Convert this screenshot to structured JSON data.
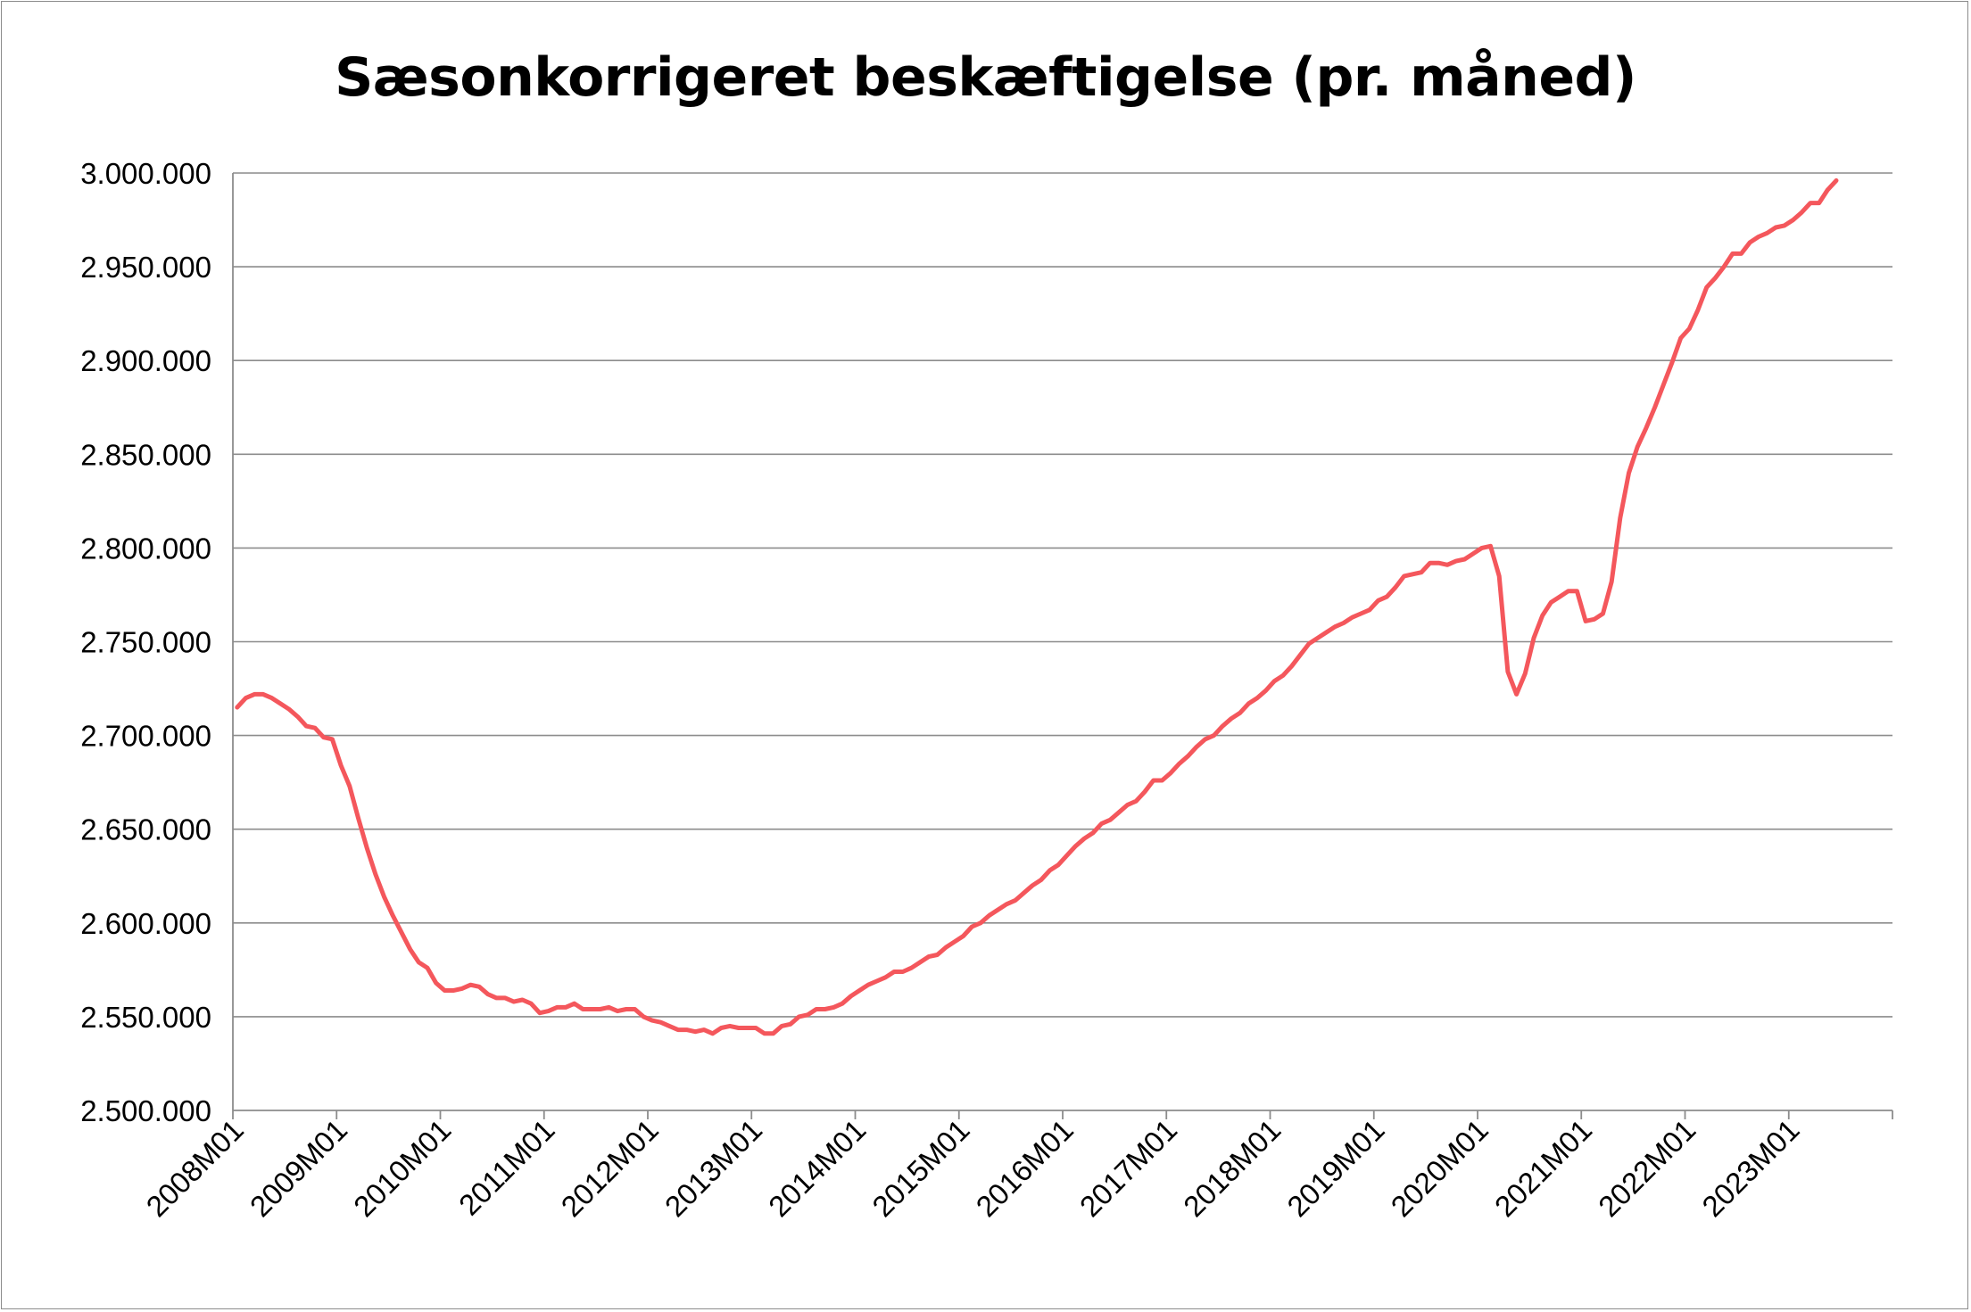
{
  "chart_data": {
    "type": "line",
    "title": "Sæsonkorrigeret beskæftigelse (pr. måned)",
    "xlabel": "",
    "ylabel": "",
    "ylim": [
      2500000,
      3000000
    ],
    "y_ticks": [
      2500000,
      2550000,
      2600000,
      2650000,
      2700000,
      2750000,
      2800000,
      2850000,
      2900000,
      2950000,
      3000000
    ],
    "y_tick_labels": [
      "2.500.000",
      "2.550.000",
      "2.600.000",
      "2.650.000",
      "2.700.000",
      "2.750.000",
      "2.800.000",
      "2.850.000",
      "2.900.000",
      "2.950.000",
      "3.000.000"
    ],
    "x_tick_labels": [
      "2008M01",
      "2009M01",
      "2010M01",
      "2011M01",
      "2012M01",
      "2013M01",
      "2014M01",
      "2015M01",
      "2016M01",
      "2017M01",
      "2018M01",
      "2019M01",
      "2020M01",
      "2021M01",
      "2022M01",
      "2023M01"
    ],
    "x_start": "2008M01",
    "x_end": "2023M07",
    "grid": true,
    "legend": "none",
    "line_color": "#f4575c",
    "series": [
      {
        "name": "",
        "values": [
          2715000,
          2720000,
          2722000,
          2722000,
          2720000,
          2717000,
          2714000,
          2710000,
          2705000,
          2704000,
          2699000,
          2698000,
          2684000,
          2673000,
          2656000,
          2640000,
          2626000,
          2614000,
          2604000,
          2595000,
          2586000,
          2579000,
          2576000,
          2568000,
          2564000,
          2564000,
          2565000,
          2567000,
          2566000,
          2562000,
          2560000,
          2560000,
          2558000,
          2559000,
          2557000,
          2552000,
          2553000,
          2555000,
          2555000,
          2557000,
          2554000,
          2554000,
          2554000,
          2555000,
          2553000,
          2554000,
          2554000,
          2550000,
          2548000,
          2547000,
          2545000,
          2543000,
          2543000,
          2542000,
          2543000,
          2541000,
          2544000,
          2545000,
          2544000,
          2544000,
          2544000,
          2541000,
          2541000,
          2545000,
          2546000,
          2550000,
          2551000,
          2554000,
          2554000,
          2555000,
          2557000,
          2561000,
          2564000,
          2567000,
          2569000,
          2571000,
          2574000,
          2574000,
          2576000,
          2579000,
          2582000,
          2583000,
          2587000,
          2590000,
          2593000,
          2598000,
          2600000,
          2604000,
          2607000,
          2610000,
          2612000,
          2616000,
          2620000,
          2623000,
          2628000,
          2631000,
          2636000,
          2641000,
          2645000,
          2648000,
          2653000,
          2655000,
          2659000,
          2663000,
          2665000,
          2670000,
          2676000,
          2676000,
          2680000,
          2685000,
          2689000,
          2694000,
          2698000,
          2700000,
          2705000,
          2709000,
          2712000,
          2717000,
          2720000,
          2724000,
          2729000,
          2732000,
          2737000,
          2743000,
          2749000,
          2752000,
          2755000,
          2758000,
          2760000,
          2763000,
          2765000,
          2767000,
          2772000,
          2774000,
          2779000,
          2785000,
          2786000,
          2787000,
          2792000,
          2792000,
          2791000,
          2793000,
          2794000,
          2797000,
          2800000,
          2801000,
          2785000,
          2734000,
          2722000,
          2733000,
          2752000,
          2764000,
          2771000,
          2774000,
          2777000,
          2777000,
          2761000,
          2762000,
          2765000,
          2782000,
          2816000,
          2840000,
          2854000,
          2864000,
          2875000,
          2887000,
          2899000,
          2912000,
          2917000,
          2927000,
          2939000,
          2944000,
          2950000,
          2957000,
          2957000,
          2963000,
          2966000,
          2968000,
          2971000,
          2972000,
          2975000,
          2979000,
          2984000,
          2984000,
          2991000,
          2996000
        ]
      }
    ]
  }
}
